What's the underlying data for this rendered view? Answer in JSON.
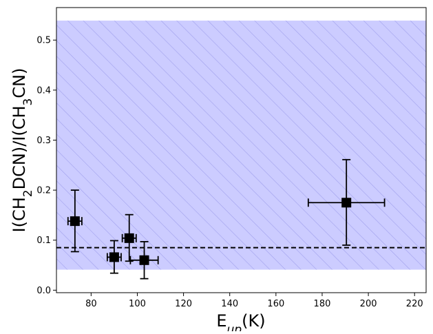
{
  "chart_data": {
    "type": "scatter",
    "xlabel_main": "E",
    "xlabel_sub": "up",
    "xlabel_tail": "(K)",
    "ylabel_parts": [
      "I(CH",
      "2",
      "DCN)/I(CH",
      "3",
      "CN)"
    ],
    "xlim": [
      65,
      225
    ],
    "ylim": [
      -0.005,
      0.565
    ],
    "xticks": [
      80,
      100,
      120,
      140,
      160,
      180,
      200,
      220
    ],
    "yticks": [
      0.0,
      0.1,
      0.2,
      0.3,
      0.4,
      0.5
    ],
    "xtick_labels": [
      "80",
      "100",
      "120",
      "140",
      "160",
      "180",
      "200",
      "220"
    ],
    "ytick_labels": [
      "0.0",
      "0.1",
      "0.2",
      "0.3",
      "0.4",
      "0.5"
    ],
    "points": [
      {
        "x": 73,
        "y": 0.138,
        "xerr": 3,
        "yerr_low": 0.061,
        "yerr_high": 0.062
      },
      {
        "x": 90,
        "y": 0.066,
        "xerr": 3,
        "yerr_low": 0.032,
        "yerr_high": 0.033
      },
      {
        "x": 96.5,
        "y": 0.104,
        "xerr": 3,
        "yerr_low": 0.046,
        "yerr_high": 0.047
      },
      {
        "x": 103,
        "y": 0.06,
        "xerr": 6,
        "yerr_low": 0.037,
        "yerr_high": 0.037
      },
      {
        "x": 190.5,
        "y": 0.175,
        "xerr": 16.5,
        "yerr_low": 0.085,
        "yerr_high": 0.086
      }
    ],
    "band": {
      "ymin": 0.041,
      "ymax": 0.539
    },
    "hline": 0.085,
    "colors": {
      "band_fill": "#ccccff",
      "band_hatch": "#a3a3ee",
      "marker": "#000000",
      "hline": "#000000"
    }
  }
}
